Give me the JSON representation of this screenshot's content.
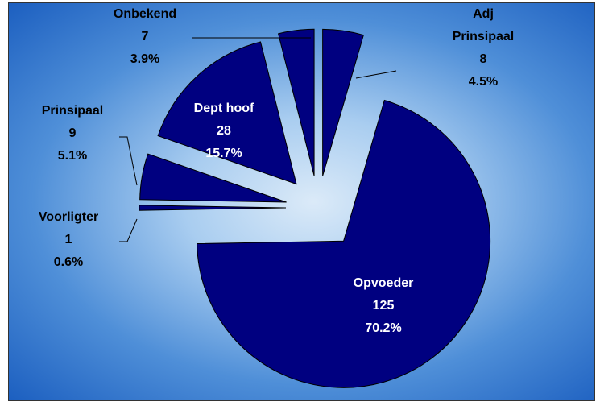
{
  "chart_data": {
    "type": "pie",
    "categories": [
      "Adj Prinsipaal",
      "Opvoeder",
      "Voorligter",
      "Prinsipaal",
      "Dept hoof",
      "Onbekend"
    ],
    "values": [
      8,
      125,
      1,
      9,
      28,
      7
    ],
    "percent_labels": [
      "4.5%",
      "70.2%",
      "0.6%",
      "5.1%",
      "15.7%",
      "3.9%"
    ],
    "color": "#000080"
  }
}
